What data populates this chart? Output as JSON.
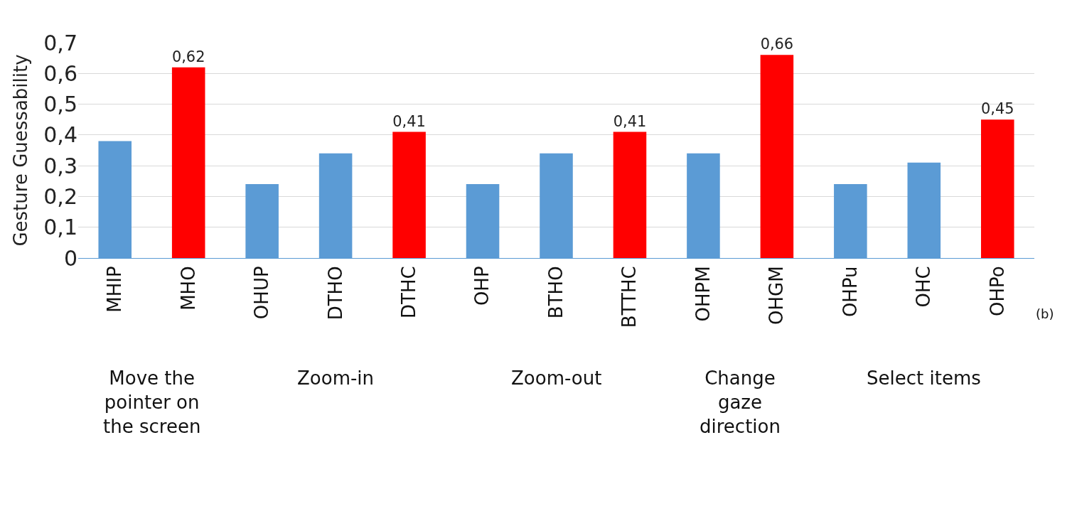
{
  "chart_data": {
    "type": "bar",
    "ylabel": "Gesture Guessability",
    "categories": [
      "MHIP",
      "MHO",
      "OHUP",
      "DTHO",
      "DTHC",
      "OHP",
      "BTHO",
      "BTTHC",
      "OHPM",
      "OHGM",
      "OHPu",
      "OHC",
      "OHPo"
    ],
    "values": [
      0.38,
      0.62,
      0.24,
      0.34,
      0.41,
      0.24,
      0.34,
      0.41,
      0.34,
      0.66,
      0.24,
      0.31,
      0.45
    ],
    "colors": [
      "#5b9bd5",
      "#ff0000",
      "#5b9bd5",
      "#5b9bd5",
      "#ff0000",
      "#5b9bd5",
      "#5b9bd5",
      "#ff0000",
      "#5b9bd5",
      "#ff0000",
      "#5b9bd5",
      "#5b9bd5",
      "#ff0000"
    ],
    "value_labels": [
      null,
      "0,62",
      null,
      null,
      "0,41",
      null,
      null,
      "0,41",
      null,
      "0,66",
      null,
      null,
      "0,45"
    ],
    "ylim": [
      0,
      0.7
    ],
    "yticks": [
      {
        "value": 0,
        "label": "0"
      },
      {
        "value": 0.1,
        "label": "0,1"
      },
      {
        "value": 0.2,
        "label": "0,2"
      },
      {
        "value": 0.3,
        "label": "0,3"
      },
      {
        "value": 0.4,
        "label": "0,4"
      },
      {
        "value": 0.5,
        "label": "0,5"
      },
      {
        "value": 0.6,
        "label": "0,6"
      },
      {
        "value": 0.7,
        "label": "0,7"
      }
    ],
    "grid": "y",
    "annotations": [
      "Move the\npointer on\nthe screen",
      "Zoom-in",
      "Zoom-out",
      "Change\ngaze\ndirection",
      "Select items",
      "(b)"
    ]
  }
}
